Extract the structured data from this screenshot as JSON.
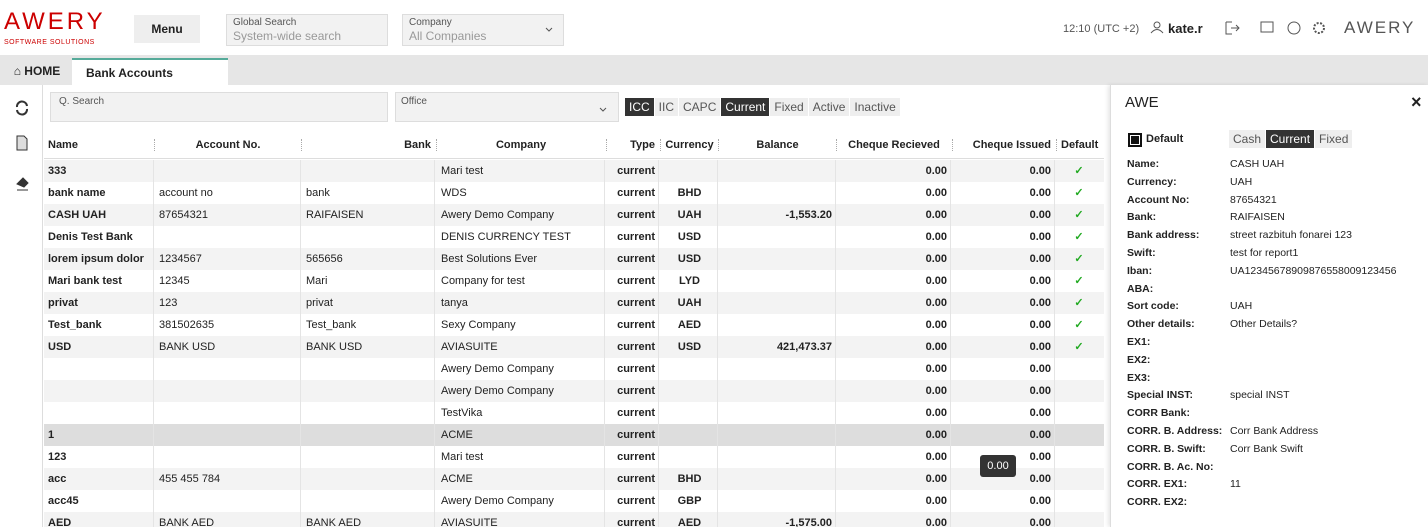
{
  "header": {
    "logo": "AWERY",
    "logo_sub": "SOFTWARE SOLUTIONS",
    "menu": "Menu",
    "search_label": "Global Search",
    "search_placeholder": "System-wide search",
    "company_label": "Company",
    "company_value": "All Companies",
    "time": "12:10 (UTC +2)",
    "user": "kate.r",
    "brand": "AWERY"
  },
  "tabs": [
    "HOME",
    "Bank Accounts"
  ],
  "filters": {
    "search_placeholder": "Q. Search",
    "office_label": "Office",
    "toggles": [
      {
        "label": "ICC",
        "active": true
      },
      {
        "label": "IIC",
        "active": false
      },
      {
        "label": "CAPC",
        "active": false
      },
      {
        "label": "Current",
        "active": true
      },
      {
        "label": "Fixed",
        "active": false
      },
      {
        "label": "Active",
        "active": false
      },
      {
        "label": "Inactive",
        "active": false
      }
    ]
  },
  "table": {
    "columns": [
      "Name",
      "Account No.",
      "Bank",
      "Company",
      "Type",
      "Currency",
      "Balance",
      "Cheque Recieved",
      "Cheque Issued",
      "Default"
    ],
    "rows": [
      [
        "333",
        null,
        null,
        "Mari test",
        "current",
        null,
        null,
        "0.00",
        "0.00"
      ],
      [
        "bank name",
        "account no",
        "bank",
        "WDS",
        "current",
        "BHD",
        null,
        "0.00",
        "0.00"
      ],
      [
        "CASH UAH",
        "87654321",
        "RAIFAISEN",
        "Awery Demo Company",
        "current",
        "UAH",
        "-1,553.20",
        "0.00",
        "0.00"
      ],
      [
        "Denis Test Bank",
        null,
        null,
        "DENIS CURRENCY TEST",
        "current",
        "USD",
        null,
        "0.00",
        "0.00"
      ],
      [
        "lorem ipsum dolor",
        "1234567",
        "565656",
        "Best Solutions Ever",
        "current",
        "USD",
        null,
        "0.00",
        "0.00"
      ],
      [
        "Mari bank test",
        "12345",
        "Mari",
        "Company for test",
        "current",
        "LYD",
        null,
        "0.00",
        "0.00"
      ],
      [
        "privat",
        "123",
        "privat",
        "tanya",
        "current",
        "UAH",
        null,
        "0.00",
        "0.00"
      ],
      [
        "Test_bank",
        "381502635",
        "Test_bank",
        "Sexy Company",
        "current",
        "AED",
        null,
        "0.00",
        "0.00"
      ],
      [
        "USD",
        "BANK USD",
        "BANK USD",
        "AVIASUITE",
        "current",
        "USD",
        "421,473.37",
        "0.00",
        "0.00"
      ],
      [
        null,
        null,
        null,
        "Awery Demo Company",
        "current",
        null,
        null,
        "0.00",
        "0.00"
      ],
      [
        null,
        null,
        null,
        "Awery Demo Company",
        "current",
        null,
        null,
        "0.00",
        "0.00"
      ],
      [
        null,
        null,
        null,
        "TestVika",
        "current",
        null,
        null,
        "0.00",
        "0.00"
      ],
      [
        "1",
        null,
        null,
        "ACME",
        "current",
        null,
        null,
        "0.00",
        "0.00"
      ],
      [
        "123",
        null,
        null,
        "Mari test",
        "current",
        null,
        null,
        "0.00",
        "0.00"
      ],
      [
        "acc",
        "455 455 784",
        null,
        "ACME",
        "current",
        "BHD",
        null,
        "0.00",
        "0.00"
      ],
      [
        "acc45",
        null,
        null,
        "Awery Demo Company",
        "current",
        "GBP",
        null,
        "0.00",
        "0.00"
      ],
      [
        "AED",
        "BANK AED",
        "BANK AED",
        "AVIASUITE",
        "current",
        "AED",
        "-1,575.00",
        "0.00",
        "0.00"
      ]
    ],
    "default": [
      true,
      true,
      true,
      true,
      true,
      true,
      true,
      true,
      true,
      false,
      false,
      false,
      false,
      false,
      false,
      false,
      false
    ],
    "selected_row": 12
  },
  "tooltip": "0.00",
  "panel": {
    "title": "AWE",
    "default_label": "Default",
    "toggles": [
      {
        "label": "Cash",
        "active": false
      },
      {
        "label": "Current",
        "active": true
      },
      {
        "label": "Fixed",
        "active": false
      }
    ],
    "fields": [
      {
        "label": "Name:",
        "value": "CASH UAH"
      },
      {
        "label": "Currency:",
        "value": "UAH"
      },
      {
        "label": "Account No:",
        "value": "87654321"
      },
      {
        "label": "Bank:",
        "value": "RAIFAISEN"
      },
      {
        "label": "Bank address:",
        "value": "street razbituh fonarei 123"
      },
      {
        "label": "Swift:",
        "value": "test for report1"
      },
      {
        "label": "Iban:",
        "value": "UA12345678909876558009123456"
      },
      {
        "label": "ABA:",
        "value": null
      },
      {
        "label": "Sort code:",
        "value": "UAH"
      },
      {
        "label": "Other details:",
        "value": "Other Details?"
      },
      {
        "label": "EX1:",
        "value": null
      },
      {
        "label": "EX2:",
        "value": null
      },
      {
        "label": "EX3:",
        "value": null
      },
      {
        "label": "Special INST:",
        "value": "special INST"
      },
      {
        "label": "CORR Bank:",
        "value": null
      },
      {
        "label": "CORR. B. Address:",
        "value": "Corr Bank Address"
      },
      {
        "label": "CORR. B. Swift:",
        "value": "Corr Bank Swift"
      },
      {
        "label": "CORR. B. Ac. No:",
        "value": null
      },
      {
        "label": "CORR. EX1:",
        "value": "11"
      },
      {
        "label": "CORR. EX2:",
        "value": null
      }
    ]
  }
}
